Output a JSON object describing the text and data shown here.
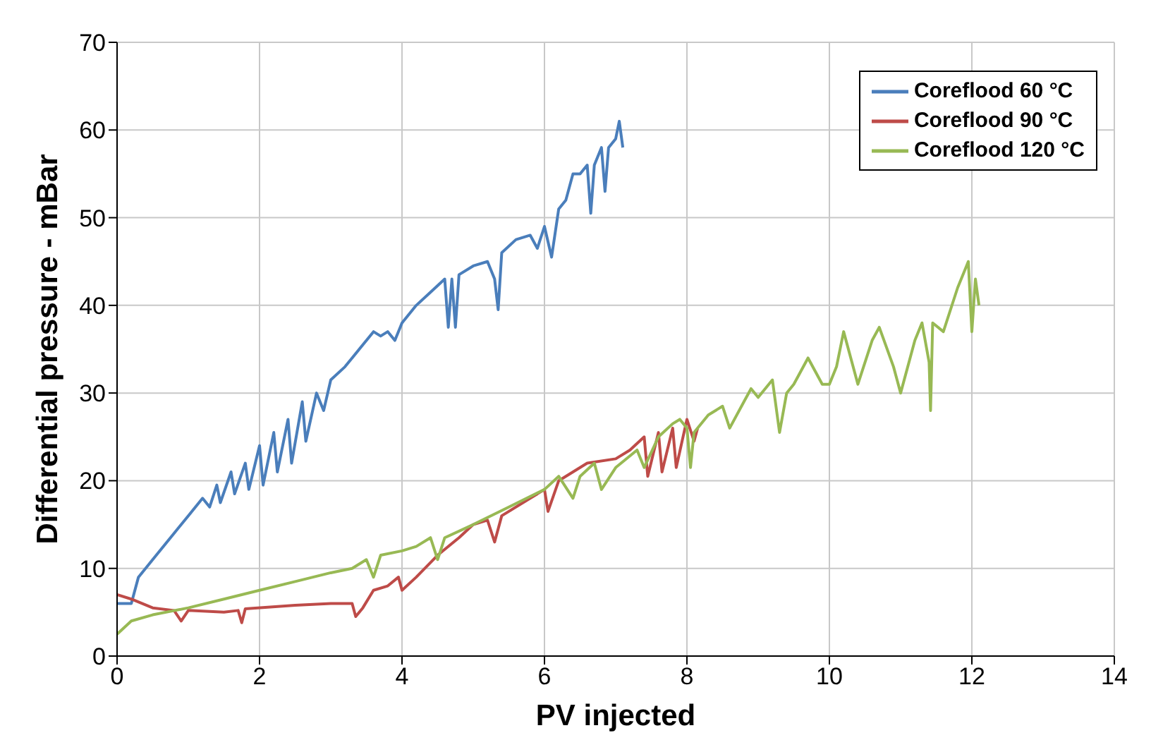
{
  "chart_data": {
    "type": "line",
    "xlabel": "PV injected",
    "ylabel": "Differential pressure - mBar",
    "xlim": [
      0,
      14
    ],
    "xticks": [
      0,
      2,
      4,
      6,
      8,
      10,
      12,
      14
    ],
    "ylim": [
      0,
      70
    ],
    "yticks": [
      0,
      10,
      20,
      30,
      40,
      50,
      60,
      70
    ],
    "grid": true,
    "legend": "top right",
    "marker": "none",
    "line_style": "solid",
    "series": [
      {
        "name": "Coreflood 60 °C",
        "color": "#4a7ebb",
        "x": [
          0,
          0.2,
          0.3,
          0.5,
          0.8,
          1.0,
          1.2,
          1.3,
          1.4,
          1.45,
          1.6,
          1.65,
          1.8,
          1.85,
          2.0,
          2.05,
          2.2,
          2.25,
          2.4,
          2.45,
          2.6,
          2.65,
          2.8,
          2.9,
          3.0,
          3.2,
          3.4,
          3.6,
          3.7,
          3.8,
          3.9,
          4.0,
          4.2,
          4.4,
          4.6,
          4.65,
          4.7,
          4.75,
          4.8,
          5.0,
          5.2,
          5.3,
          5.35,
          5.4,
          5.6,
          5.8,
          5.9,
          6.0,
          6.1,
          6.2,
          6.3,
          6.4,
          6.5,
          6.6,
          6.65,
          6.7,
          6.8,
          6.85,
          6.9,
          7.0,
          7.05,
          7.1
        ],
        "values": [
          6,
          6,
          9,
          11,
          14,
          16,
          18,
          17,
          19.5,
          17.5,
          21,
          18.5,
          22,
          19,
          24,
          19.5,
          25.5,
          21,
          27,
          22,
          29,
          24.5,
          30,
          28,
          31.5,
          33,
          35,
          37,
          36.5,
          37,
          36,
          38,
          40,
          41.5,
          43,
          37.5,
          43,
          37.5,
          43.5,
          44.5,
          45,
          43,
          39.5,
          46,
          47.5,
          48,
          46.5,
          49,
          45.5,
          51,
          52,
          55,
          55,
          56,
          50.5,
          56,
          58,
          53,
          58,
          59,
          61,
          58
        ]
      },
      {
        "name": "Coreflood 90 °C",
        "color": "#be4b48",
        "x": [
          0,
          0.2,
          0.5,
          0.8,
          0.9,
          1.0,
          1.5,
          1.7,
          1.75,
          1.8,
          2.5,
          3.0,
          3.3,
          3.35,
          3.45,
          3.6,
          3.8,
          3.95,
          4.0,
          4.2,
          4.5,
          4.8,
          5.0,
          5.2,
          5.3,
          5.4,
          5.8,
          6.0,
          6.05,
          6.2,
          6.6,
          7.0,
          7.2,
          7.4,
          7.45,
          7.6,
          7.65,
          7.8,
          7.85,
          8.0,
          8.1,
          8.15
        ],
        "values": [
          7,
          6.5,
          5.5,
          5.2,
          4,
          5.2,
          5,
          5.2,
          3.8,
          5.4,
          5.8,
          6,
          6,
          4.5,
          5.5,
          7.5,
          8,
          9,
          7.5,
          9,
          11.5,
          13.5,
          15,
          15.5,
          13,
          16,
          18,
          19,
          16.5,
          20,
          22,
          22.5,
          23.5,
          25,
          20.5,
          25.5,
          21,
          26,
          21.5,
          27,
          24.5,
          26
        ]
      },
      {
        "name": "Coreflood 120 °C",
        "color": "#98b954",
        "x": [
          0,
          0.2,
          0.5,
          1.0,
          1.5,
          2.0,
          2.5,
          3.0,
          3.3,
          3.5,
          3.6,
          3.7,
          4.0,
          4.2,
          4.4,
          4.5,
          4.6,
          5.0,
          5.5,
          6.0,
          6.2,
          6.4,
          6.5,
          6.7,
          6.8,
          7.0,
          7.3,
          7.4,
          7.6,
          7.8,
          7.9,
          8.0,
          8.05,
          8.1,
          8.3,
          8.5,
          8.6,
          8.8,
          8.9,
          9.0,
          9.2,
          9.3,
          9.4,
          9.5,
          9.7,
          9.9,
          10.0,
          10.1,
          10.2,
          10.4,
          10.6,
          10.7,
          10.9,
          11.0,
          11.2,
          11.3,
          11.4,
          11.42,
          11.45,
          11.6,
          11.8,
          11.9,
          11.95,
          12.0,
          12.05,
          12.1
        ],
        "values": [
          2.5,
          4,
          4.7,
          5.5,
          6.5,
          7.5,
          8.5,
          9.5,
          10,
          11,
          9,
          11.5,
          12,
          12.5,
          13.5,
          11,
          13.5,
          15,
          17,
          19,
          20.5,
          18,
          20.5,
          22,
          19,
          21.5,
          23.5,
          21.5,
          25,
          26.5,
          27,
          26,
          21.5,
          25.5,
          27.5,
          28.5,
          26,
          29,
          30.5,
          29.5,
          31.5,
          25.5,
          30,
          31,
          34,
          31,
          31,
          33,
          37,
          31,
          36,
          37.5,
          33,
          30,
          36,
          38,
          33.5,
          28,
          38,
          37,
          42,
          44,
          45,
          37,
          43,
          40
        ]
      }
    ]
  }
}
